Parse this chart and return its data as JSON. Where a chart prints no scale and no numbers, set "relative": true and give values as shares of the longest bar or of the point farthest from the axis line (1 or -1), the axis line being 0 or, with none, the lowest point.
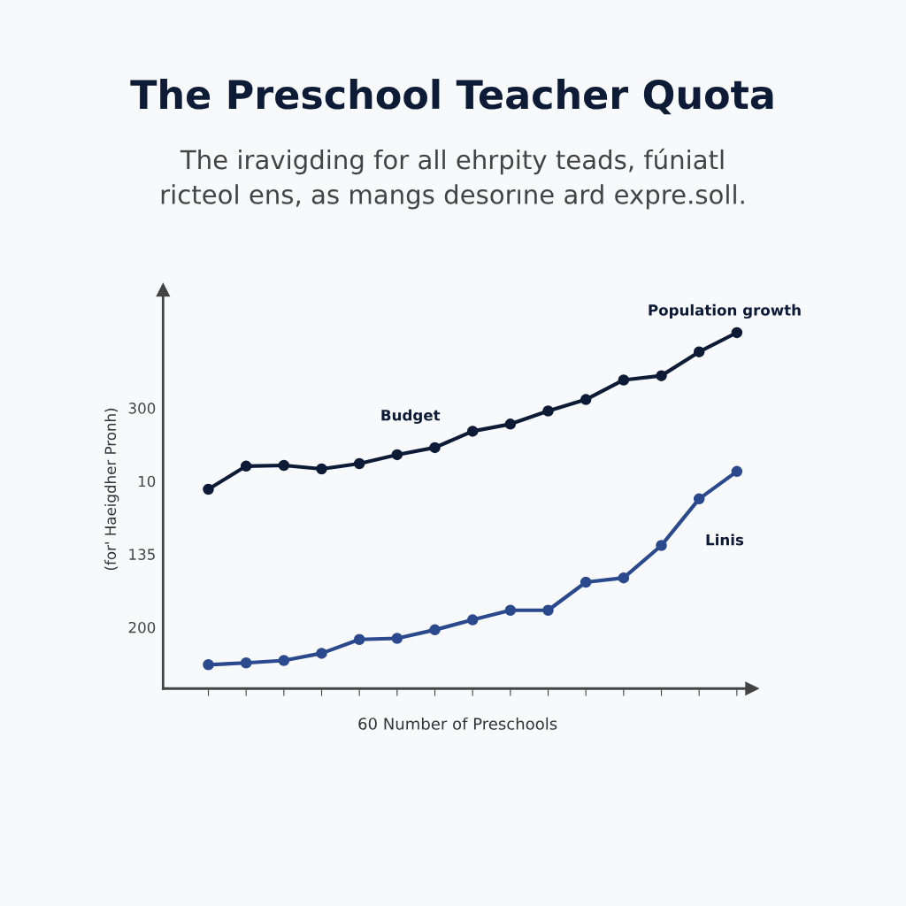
{
  "chart_data": {
    "type": "line",
    "title": "The Preschool Teacher Quota",
    "subtitle": "The iravigding for all ehrpity teads, fúniatl\nricteol ens, as mangs desorıne ard expre.soll.",
    "xlabel": "60 Number of Preschools",
    "ylabel": "(for' Haeigdher Pronh)",
    "categories": [
      null,
      null,
      null,
      null,
      null,
      null,
      null,
      null,
      null,
      null,
      null,
      null,
      null,
      null,
      null
    ],
    "relative": true,
    "marker": "circle",
    "line_style": "solid",
    "grid": false,
    "legend": false,
    "series": [
      {
        "name": "Population growth",
        "color": "#0d1b36",
        "values": [
          0.56,
          0.625,
          0.627,
          0.617,
          0.632,
          0.657,
          0.677,
          0.723,
          0.743,
          0.78,
          0.812,
          0.867,
          0.879,
          0.946,
          1.0
        ]
      },
      {
        "name": "Linis",
        "color": "#2b4a8e",
        "values": [
          0.067,
          0.072,
          0.079,
          0.099,
          0.138,
          0.141,
          0.165,
          0.193,
          0.22,
          0.22,
          0.299,
          0.311,
          0.402,
          0.533,
          0.61
        ]
      }
    ],
    "annotations": [
      {
        "text": "Budget",
        "y": 0.677
      },
      "300",
      "10",
      "135",
      "200"
    ]
  }
}
